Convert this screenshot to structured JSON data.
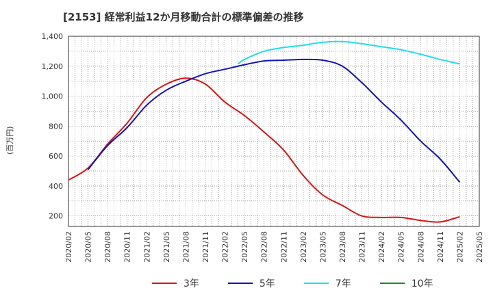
{
  "chart_data": {
    "type": "line",
    "title": "[2153]  経常利益12か月移動合計の標準偏差の推移",
    "ylabel": "(百万円)",
    "xlabel": "",
    "ylim": [
      130,
      1400
    ],
    "yticks": [
      200,
      400,
      600,
      800,
      1000,
      1200,
      1400
    ],
    "ytick_labels": [
      "200",
      "400",
      "600",
      "800",
      "1,000",
      "1,200",
      "1,400"
    ],
    "x_ticks": [
      "2020/02",
      "2020/05",
      "2020/08",
      "2020/11",
      "2021/02",
      "2021/05",
      "2021/08",
      "2021/11",
      "2022/02",
      "2022/05",
      "2022/08",
      "2022/11",
      "2023/02",
      "2023/05",
      "2023/08",
      "2023/11",
      "2024/02",
      "2024/05",
      "2024/08",
      "2024/11",
      "2025/02",
      "2025/05"
    ],
    "grid": true,
    "legend_position": "bottom",
    "series": [
      {
        "name": "3年",
        "color": "#dd1111",
        "x": [
          "2020/02",
          "2020/05",
          "2020/08",
          "2020/11",
          "2021/02",
          "2021/05",
          "2021/08",
          "2021/11",
          "2022/02",
          "2022/05",
          "2022/08",
          "2022/11",
          "2023/02",
          "2023/05",
          "2023/08",
          "2023/11",
          "2024/02",
          "2024/05",
          "2024/08",
          "2024/11",
          "2025/02"
        ],
        "values": [
          440,
          520,
          680,
          820,
          990,
          1080,
          1120,
          1080,
          960,
          870,
          760,
          640,
          470,
          340,
          270,
          200,
          190,
          190,
          170,
          160,
          195
        ]
      },
      {
        "name": "5年",
        "color": "#1111bb",
        "x": [
          "2020/05",
          "2020/08",
          "2020/11",
          "2021/02",
          "2021/05",
          "2021/08",
          "2021/11",
          "2022/02",
          "2022/05",
          "2022/08",
          "2022/11",
          "2023/02",
          "2023/05",
          "2023/08",
          "2023/11",
          "2024/02",
          "2024/05",
          "2024/08",
          "2024/11",
          "2025/02"
        ],
        "values": [
          510,
          670,
          790,
          940,
          1040,
          1100,
          1150,
          1180,
          1210,
          1235,
          1240,
          1245,
          1240,
          1200,
          1090,
          960,
          840,
          700,
          580,
          425
        ]
      },
      {
        "name": "7年",
        "color": "#22ddee",
        "x": [
          "2022/04",
          "2022/05",
          "2022/08",
          "2022/11",
          "2023/02",
          "2023/05",
          "2023/08",
          "2023/11",
          "2024/02",
          "2024/05",
          "2024/08",
          "2024/11",
          "2025/02"
        ],
        "values": [
          1215,
          1245,
          1300,
          1325,
          1340,
          1360,
          1365,
          1350,
          1330,
          1310,
          1280,
          1245,
          1215
        ]
      },
      {
        "name": "10年",
        "color": "#228822",
        "x": [],
        "values": []
      }
    ]
  }
}
